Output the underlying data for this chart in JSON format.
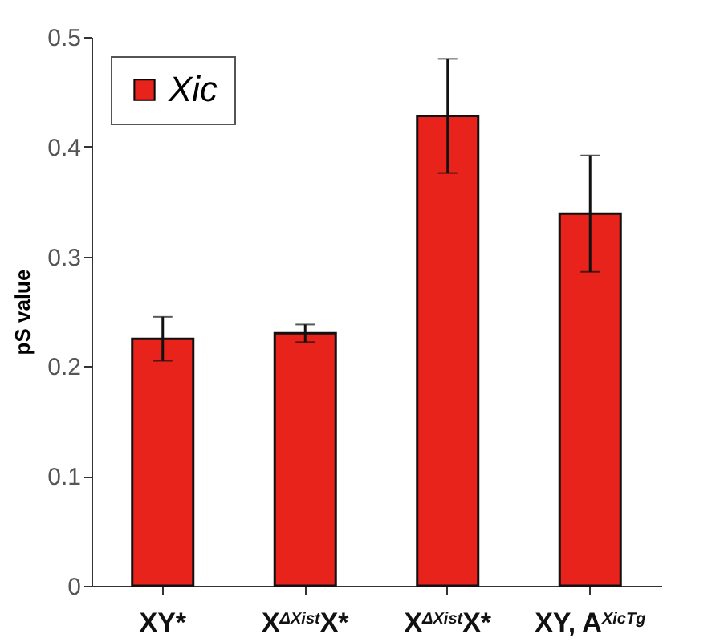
{
  "chart_data": {
    "type": "bar",
    "ylabel": "pS value",
    "categories": [
      "XY*",
      "X$^{ΔXist}$X*",
      "X$^{ΔXist}$X*",
      "XY, A$^{XicTg}$"
    ],
    "series": [
      {
        "name": "Xic",
        "color": "#e8231c",
        "values": [
          0.225,
          0.23,
          0.428,
          0.339
        ],
        "errors": [
          0.02,
          0.008,
          0.052,
          0.053
        ]
      }
    ],
    "ylim": [
      0,
      0.5
    ],
    "yticks": [
      0,
      0.1,
      0.2,
      0.3,
      0.4,
      0.5
    ],
    "grid": false,
    "legend": "top left"
  }
}
